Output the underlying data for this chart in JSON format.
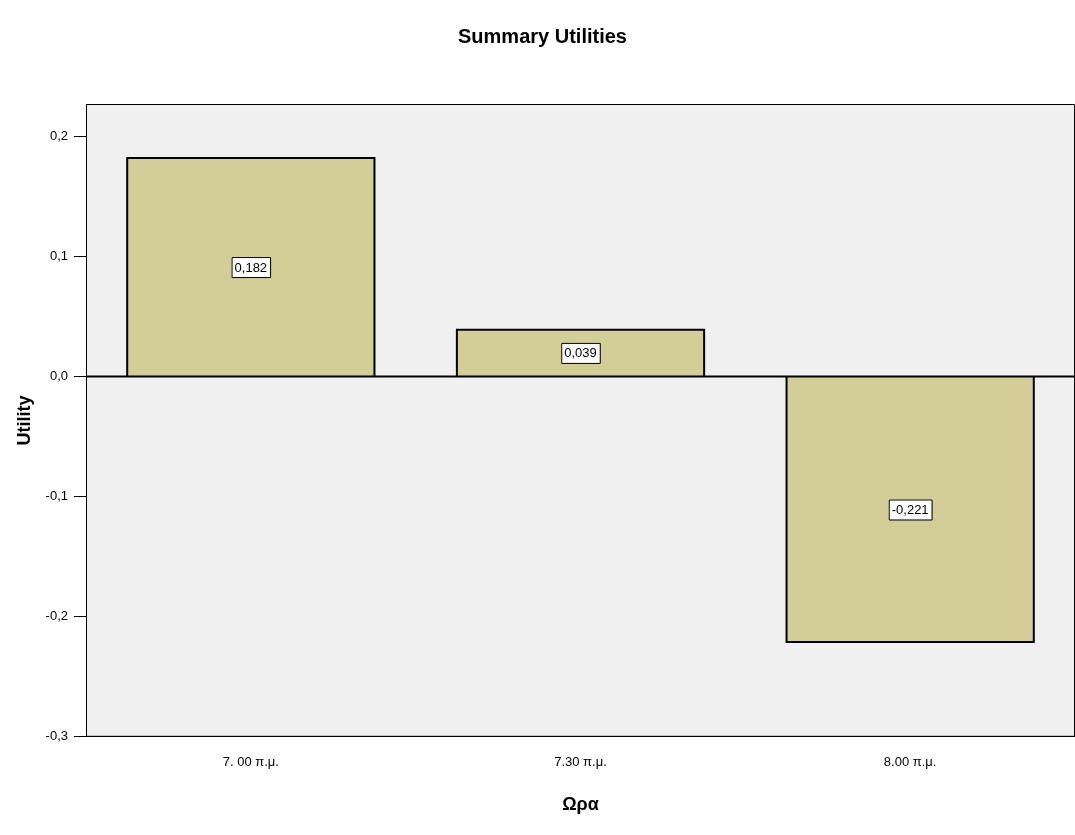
{
  "chart_data": {
    "type": "bar",
    "title": "Summary Utilities",
    "xlabel": "Ωρα",
    "ylabel": "Utility",
    "categories": [
      "7. 00 π.μ.",
      "7.30 π.μ.",
      "8.00 π.μ."
    ],
    "values": [
      0.182,
      0.039,
      -0.221
    ],
    "color": "#d3ce97",
    "value_labels": [
      "0,182",
      "0,039",
      "-0,221"
    ],
    "ylim": [
      -0.3,
      0.227
    ],
    "yticks": [
      {
        "value": -0.3,
        "label": "-0,3"
      },
      {
        "value": -0.2,
        "label": "-0,2"
      },
      {
        "value": -0.1,
        "label": "-0,1"
      },
      {
        "value": 0,
        "label": "0,0"
      },
      {
        "value": 0.1,
        "label": "0,1"
      },
      {
        "value": 0.2,
        "label": "0,2"
      }
    ],
    "ref_lines": [
      {
        "axis": "y",
        "value": 0,
        "color": "#000000"
      }
    ],
    "grid": false,
    "legend": false
  }
}
